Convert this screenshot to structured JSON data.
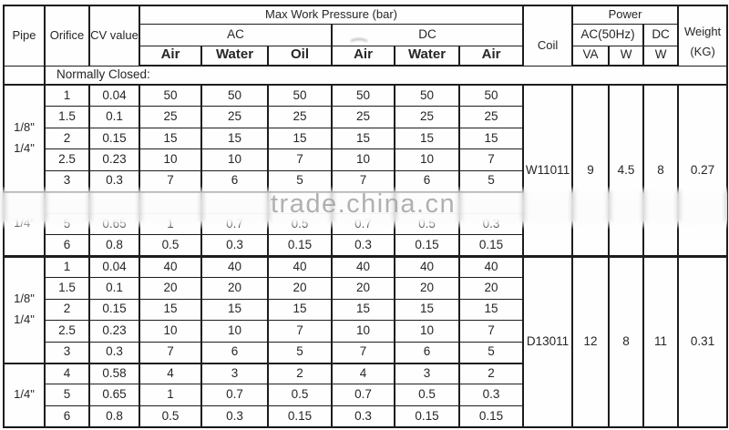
{
  "colors": {
    "border": "#1d1d1d",
    "text": "#262626",
    "watermark": "#9e9e9e"
  },
  "watermark": {
    "text": "trade.china.cn"
  },
  "header": {
    "pipe": "Pipe",
    "orifice": "Orifice",
    "cv_value": "CV value",
    "max_work_pressure": "Max Work Pressure (bar)",
    "ac": "AC",
    "dc": "DC",
    "pressure_cols": [
      "Air",
      "Water",
      "Oil",
      "Air",
      "Water",
      "Air"
    ],
    "coil": "Coil",
    "power": "Power",
    "ac_50hz": "AC(50Hz)",
    "power_dc": "DC",
    "power_units": [
      "VA",
      "W",
      "W"
    ],
    "weight": "Weight\n(KG)"
  },
  "note_row": {
    "label": "Normally Closed:"
  },
  "sections": [
    {
      "coil": "W11011",
      "power_va": "9",
      "power_w_ac": "4.5",
      "power_w_dc": "8",
      "weight": "0.27",
      "pipe_groups": [
        {
          "label": "1/8\"\n1/4\""
        },
        {
          "label": "1/4\""
        }
      ],
      "rows": [
        {
          "orifice": "1",
          "cv": "0.04",
          "values": [
            "50",
            "50",
            "50",
            "50",
            "50",
            "50"
          ]
        },
        {
          "orifice": "1.5",
          "cv": "0.1",
          "values": [
            "25",
            "25",
            "25",
            "25",
            "25",
            "25"
          ]
        },
        {
          "orifice": "2",
          "cv": "0.15",
          "values": [
            "15",
            "15",
            "15",
            "15",
            "15",
            "15"
          ]
        },
        {
          "orifice": "2.5",
          "cv": "0.23",
          "values": [
            "10",
            "10",
            "7",
            "10",
            "10",
            "7"
          ]
        },
        {
          "orifice": "3",
          "cv": "0.3",
          "values": [
            "7",
            "6",
            "5",
            "7",
            "6",
            "5"
          ]
        },
        {
          "orifice": "",
          "cv": "",
          "values": [
            "",
            "",
            "",
            "",
            "",
            ""
          ]
        },
        {
          "orifice": "5",
          "cv": "0.65",
          "values": [
            "1",
            "0.7",
            "0.5",
            "0.7",
            "0.5",
            "0.3"
          ]
        },
        {
          "orifice": "6",
          "cv": "0.8",
          "values": [
            "0.5",
            "0.3",
            "0.15",
            "0.3",
            "0.15",
            "0.15"
          ]
        }
      ]
    },
    {
      "coil": "D13011",
      "power_va": "12",
      "power_w_ac": "8",
      "power_w_dc": "11",
      "weight": "0.31",
      "pipe_groups": [
        {
          "label": "1/8\"\n1/4\""
        },
        {
          "label": "1/4\""
        }
      ],
      "rows": [
        {
          "orifice": "1",
          "cv": "0.04",
          "values": [
            "40",
            "40",
            "40",
            "40",
            "40",
            "40"
          ]
        },
        {
          "orifice": "1.5",
          "cv": "0.1",
          "values": [
            "20",
            "20",
            "20",
            "20",
            "20",
            "20"
          ]
        },
        {
          "orifice": "2",
          "cv": "0.15",
          "values": [
            "15",
            "15",
            "15",
            "15",
            "15",
            "15"
          ]
        },
        {
          "orifice": "2.5",
          "cv": "0.23",
          "values": [
            "10",
            "10",
            "7",
            "10",
            "10",
            "7"
          ]
        },
        {
          "orifice": "3",
          "cv": "0.3",
          "values": [
            "7",
            "6",
            "5",
            "7",
            "6",
            "5"
          ]
        },
        {
          "orifice": "4",
          "cv": "0.58",
          "values": [
            "4",
            "3",
            "2",
            "4",
            "3",
            "2"
          ]
        },
        {
          "orifice": "5",
          "cv": "0.65",
          "values": [
            "1",
            "0.7",
            "0.5",
            "0.7",
            "0.5",
            "0.3"
          ]
        },
        {
          "orifice": "6",
          "cv": "0.8",
          "values": [
            "0.5",
            "0.3",
            "0.15",
            "0.3",
            "0.15",
            "0.15"
          ]
        }
      ]
    }
  ]
}
